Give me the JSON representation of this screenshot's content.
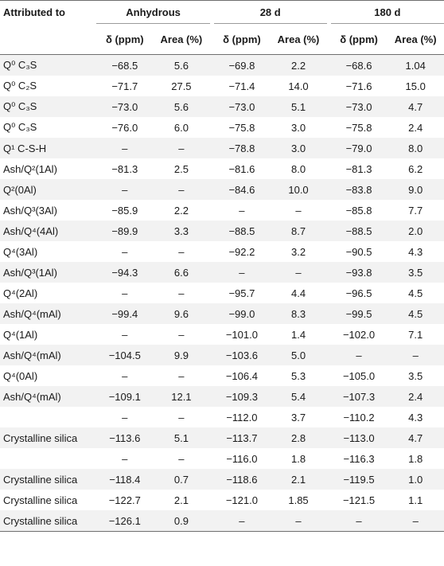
{
  "headers": {
    "attributed": "Attributed to",
    "groups": [
      "Anhydrous",
      "28 d",
      "180 d"
    ],
    "delta": "δ (ppm)",
    "area": "Area (%)"
  },
  "rows": [
    {
      "label": "Q⁰ C₃S",
      "v": [
        "−68.5",
        "5.6",
        "−69.8",
        "2.2",
        "−68.6",
        "1.04"
      ]
    },
    {
      "label": "Q⁰ C₂S",
      "v": [
        "−71.7",
        "27.5",
        "−71.4",
        "14.0",
        "−71.6",
        "15.0"
      ]
    },
    {
      "label": "Q⁰ C₃S",
      "v": [
        "−73.0",
        "5.6",
        "−73.0",
        "5.1",
        "−73.0",
        "4.7"
      ]
    },
    {
      "label": "Q⁰ C₃S",
      "v": [
        "−76.0",
        "6.0",
        "−75.8",
        "3.0",
        "−75.8",
        "2.4"
      ]
    },
    {
      "label": "Q¹ C-S-H",
      "v": [
        "–",
        "–",
        "−78.8",
        "3.0",
        "−79.0",
        "8.0"
      ]
    },
    {
      "label": "Ash/Q²(1Al)",
      "v": [
        "−81.3",
        "2.5",
        "−81.6",
        "8.0",
        "−81.3",
        "6.2"
      ]
    },
    {
      "label": "Q²(0Al)",
      "v": [
        "–",
        "–",
        "−84.6",
        "10.0",
        "−83.8",
        "9.0"
      ]
    },
    {
      "label": "Ash/Q³(3Al)",
      "v": [
        "−85.9",
        "2.2",
        "–",
        "–",
        "−85.8",
        "7.7"
      ]
    },
    {
      "label": "Ash/Q⁴(4Al)",
      "v": [
        "−89.9",
        "3.3",
        "−88.5",
        "8.7",
        "−88.5",
        "2.0"
      ]
    },
    {
      "label": "Q⁴(3Al)",
      "v": [
        "–",
        "–",
        "−92.2",
        "3.2",
        "−90.5",
        "4.3"
      ]
    },
    {
      "label": "Ash/Q³(1Al)",
      "v": [
        "−94.3",
        "6.6",
        "–",
        "–",
        "−93.8",
        "3.5"
      ]
    },
    {
      "label": "Q⁴(2Al)",
      "v": [
        "–",
        "–",
        "−95.7",
        "4.4",
        "−96.5",
        "4.5"
      ]
    },
    {
      "label": "Ash/Q⁴(mAl)",
      "v": [
        "−99.4",
        "9.6",
        "−99.0",
        "8.3",
        "−99.5",
        "4.5"
      ]
    },
    {
      "label": "Q⁴(1Al)",
      "v": [
        "–",
        "–",
        "−101.0",
        "1.4",
        "−102.0",
        "7.1"
      ]
    },
    {
      "label": "Ash/Q⁴(mAl)",
      "v": [
        "−104.5",
        "9.9",
        "−103.6",
        "5.0",
        "–",
        "–"
      ]
    },
    {
      "label": "Q⁴(0Al)",
      "v": [
        "–",
        "–",
        "−106.4",
        "5.3",
        "−105.0",
        "3.5"
      ]
    },
    {
      "label": "Ash/Q⁴(mAl)",
      "v": [
        "−109.1",
        "12.1",
        "−109.3",
        "5.4",
        "−107.3",
        "2.4"
      ]
    },
    {
      "label": "",
      "v": [
        "–",
        "–",
        "−112.0",
        "3.7",
        "−110.2",
        "4.3"
      ]
    },
    {
      "label": "Crystalline silica",
      "v": [
        "−113.6",
        "5.1",
        "−113.7",
        "2.8",
        "−113.0",
        "4.7"
      ]
    },
    {
      "label": "",
      "v": [
        "–",
        "–",
        "−116.0",
        "1.8",
        "−116.3",
        "1.8"
      ]
    },
    {
      "label": "Crystalline silica",
      "v": [
        "−118.4",
        "0.7",
        "−118.6",
        "2.1",
        "−119.5",
        "1.0"
      ]
    },
    {
      "label": "Crystalline silica",
      "v": [
        "−122.7",
        "2.1",
        "−121.0",
        "1.85",
        "−121.5",
        "1.1"
      ]
    },
    {
      "label": "Crystalline silica",
      "v": [
        "−126.1",
        "0.9",
        "–",
        "–",
        "–",
        "–"
      ]
    }
  ]
}
